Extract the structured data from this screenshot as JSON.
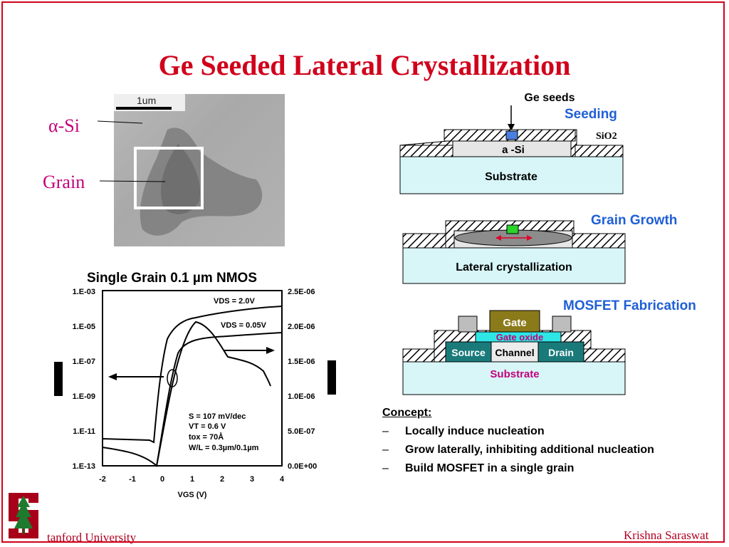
{
  "title": "Ge Seeded Lateral Crystallization",
  "micrograph": {
    "scale_label": "1um",
    "label_asi": "α-Si",
    "label_grain": "Grain"
  },
  "graph": {
    "title": "Single Grain 0.1 µm NMOS",
    "left_ticks": [
      "1.E-03",
      "1.E-05",
      "1.E-07",
      "1.E-09",
      "1.E-11",
      "1.E-13"
    ],
    "right_ticks": [
      "2.5E-06",
      "2.0E-06",
      "1.5E-06",
      "1.0E-06",
      "5.0E-07",
      "0.0E+00"
    ],
    "x_ticks": [
      "-2",
      "-1",
      "0",
      "1",
      "2",
      "3",
      "4"
    ],
    "x_label": "VGS (V)",
    "vds1": "VDS = 2.0V",
    "vds2": "VDS = 0.05V",
    "params": [
      "S = 107 mV/dec",
      "VT = 0.6 V",
      "tox = 70Å",
      "W/L = 0.3µm/0.1µm"
    ]
  },
  "seeding": {
    "heading": "Seeding",
    "ge_seeds": "Ge seeds",
    "sio2": "SiO2",
    "asi": "a -Si",
    "substrate": "Substrate"
  },
  "growth": {
    "heading": "Grain Growth",
    "substrate": "Lateral crystallization"
  },
  "mosfet": {
    "heading": "MOSFET Fabrication",
    "gate": "Gate",
    "gate_oxide": "Gate oxide",
    "source": "Source",
    "channel": "Channel",
    "drain": "Drain",
    "substrate": "Substrate"
  },
  "concept": {
    "heading": "Concept:",
    "items": [
      "Locally induce nucleation",
      "Grow laterally, inhibiting additional nucleation",
      "Build MOSFET in a single grain"
    ]
  },
  "footer": {
    "university": "tanford University",
    "author": "Krishna Saraswat"
  },
  "colors": {
    "title": "#d0021b",
    "heading": "#1f5fd6",
    "substrate": "#d8f6f8",
    "gate": "#8b7a1a",
    "sd": "#1a7a7a"
  }
}
